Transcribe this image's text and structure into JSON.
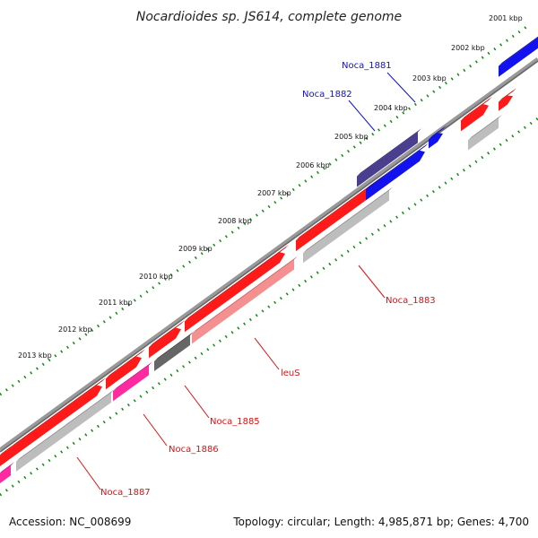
{
  "title": "Nocardioides sp. JS614, complete genome",
  "footer": {
    "accession": "Accession: NC_008699",
    "topology": "Topology: circular; Length: 4,985,871 bp; Genes: 4,700"
  },
  "kbp_ticks": [
    "2001 kbp",
    "2002 kbp",
    "2003 kbp",
    "2004 kbp",
    "2005 kbp",
    "2006 kbp",
    "2007 kbp",
    "2008 kbp",
    "2009 kbp",
    "2010 kbp",
    "2011 kbp",
    "2012 kbp",
    "2013 kbp"
  ],
  "gene_labels": [
    {
      "name": "noca-1881-label",
      "text": "Noca_1881",
      "color": "#1010cc"
    },
    {
      "name": "noca-1882-label",
      "text": "Noca_1882",
      "color": "#1010cc"
    },
    {
      "name": "noca-1883-label",
      "text": "Noca_1883",
      "color": "#dd1111"
    },
    {
      "name": "leus-label",
      "text": "leuS",
      "color": "#dd1111"
    },
    {
      "name": "noca-1885-label",
      "text": "Noca_1885",
      "color": "#dd1111"
    },
    {
      "name": "noca-1886-label",
      "text": "Noca_1886",
      "color": "#dd1111"
    },
    {
      "name": "noca-1887-label",
      "text": "Noca_1887",
      "color": "#dd1111"
    }
  ],
  "colors": {
    "forward_cds": "#ff0000",
    "reverse_cds": "#0000ee",
    "tick_green": "#118811",
    "backbone": "#8a8a8a"
  }
}
